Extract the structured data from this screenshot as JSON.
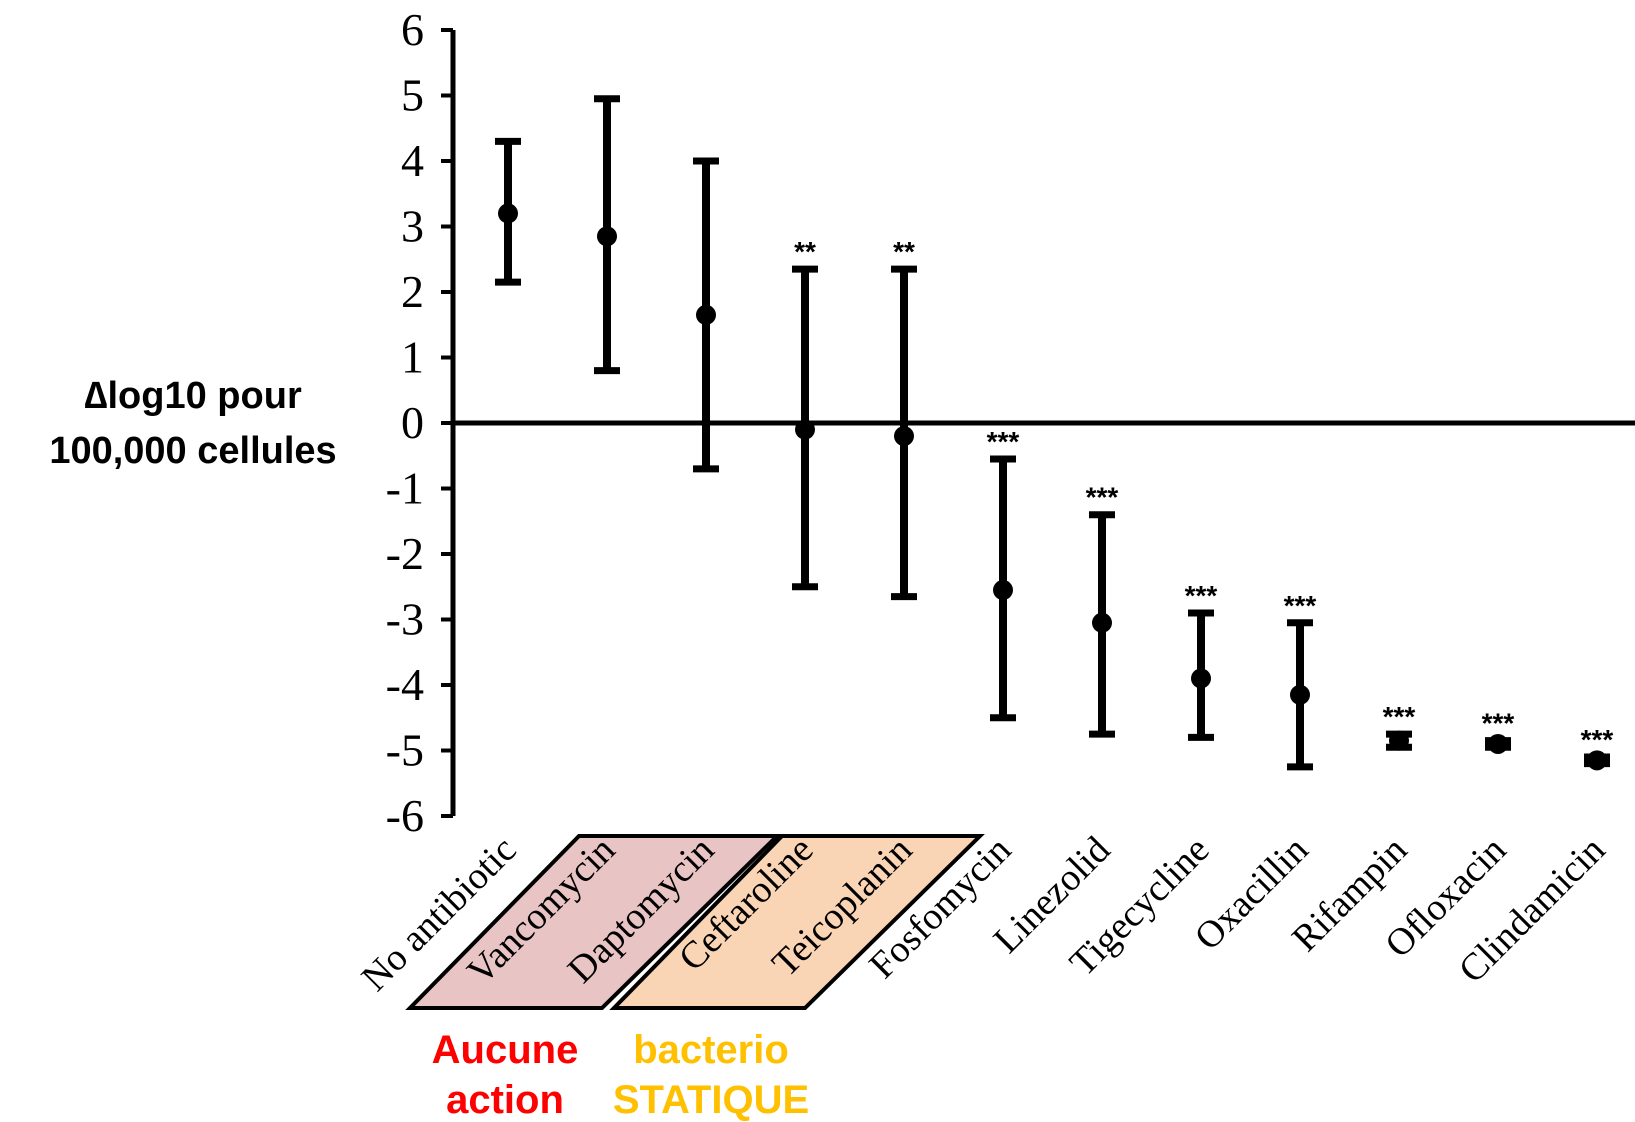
{
  "chart_data": {
    "type": "scatter",
    "ylabel": [
      "∆log10 pour",
      "100,000 cellules"
    ],
    "ylim": [
      -6,
      6
    ],
    "yticks": [
      6,
      5,
      4,
      3,
      2,
      1,
      0,
      -1,
      -2,
      -3,
      -4,
      -5,
      -6
    ],
    "categories": [
      "No antibiotic",
      "Vancomycin",
      "Daptomycin",
      "Ceftaroline",
      "Teicoplanin",
      "Fosfomycin",
      "Linezolid",
      "Tigecycline",
      "Oxacillin",
      "Rifampin",
      "Ofloxacin",
      "Clindamicin"
    ],
    "means": [
      3.2,
      2.85,
      1.65,
      -0.1,
      -0.2,
      -2.55,
      -3.05,
      -3.9,
      -4.15,
      -4.85,
      -4.9,
      -5.15
    ],
    "upper": [
      4.3,
      4.95,
      4.0,
      2.35,
      2.35,
      -0.55,
      -1.4,
      -2.9,
      -3.05,
      -4.75,
      -4.85,
      -5.1
    ],
    "lower": [
      2.15,
      0.8,
      -0.7,
      -2.5,
      -2.65,
      -4.5,
      -4.75,
      -4.8,
      -5.25,
      -4.95,
      -4.95,
      -5.2
    ],
    "significance": [
      "",
      "",
      "",
      "**",
      "**",
      "***",
      "***",
      "***",
      "***",
      "***",
      "***",
      "***"
    ],
    "groups": [
      {
        "lines": [
          "Aucune",
          "action"
        ],
        "color": "#ff0000",
        "fill": "#e8c4c4",
        "members": [
          "Vancomycin",
          "Daptomycin"
        ]
      },
      {
        "lines": [
          "bacterio",
          "STATIQUE"
        ],
        "color": "#ffc000",
        "fill": "#fad5b5",
        "members": [
          "Ceftaroline",
          "Teicoplanin"
        ]
      }
    ],
    "grid": false,
    "legend": "none"
  }
}
